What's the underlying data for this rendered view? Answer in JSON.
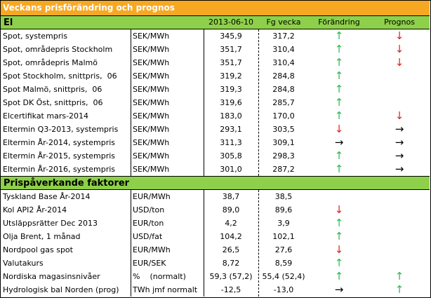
{
  "title": "Veckans prisförändring och prognos",
  "columns": [
    "2013-06-10",
    "Fg vecka",
    "Förändring",
    "Prognos"
  ],
  "sections": [
    {
      "title": "El",
      "rows": [
        {
          "label": "Spot, systempris",
          "unit": "SEK/MWh",
          "value": "345,9",
          "previous": "317,2",
          "change": {
            "symbol": "↑",
            "color": "#2db84d"
          },
          "forecast": {
            "symbol": "↓",
            "color": "#e02020"
          }
        },
        {
          "label": "Spot, områdepris Stockholm",
          "unit": "SEK/MWh",
          "value": "351,7",
          "previous": "310,4",
          "change": {
            "symbol": "↑",
            "color": "#2db84d"
          },
          "forecast": {
            "symbol": "↓",
            "color": "#e02020"
          }
        },
        {
          "label": "Spot, områdepris Malmö",
          "unit": "SEK/MWh",
          "value": "351,7",
          "previous": "310,4",
          "change": {
            "symbol": "↑",
            "color": "#2db84d"
          },
          "forecast": {
            "symbol": "↓",
            "color": "#e02020"
          }
        },
        {
          "label": "Spot Stockholm, snittpris,  06",
          "unit": "SEK/MWh",
          "value": "319,2",
          "previous": "284,8",
          "change": {
            "symbol": "↑",
            "color": "#2db84d"
          },
          "forecast": null
        },
        {
          "label": "Spot Malmö, snittpris,  06",
          "unit": "SEK/MWh",
          "value": "319,3",
          "previous": "284,8",
          "change": {
            "symbol": "↑",
            "color": "#2db84d"
          },
          "forecast": null
        },
        {
          "label": "Spot DK Öst, snittpris,  06",
          "unit": "SEK/MWh",
          "value": "319,6",
          "previous": "285,7",
          "change": {
            "symbol": "↑",
            "color": "#2db84d"
          },
          "forecast": null
        },
        {
          "label": "Elcertifikat mars-2014",
          "unit": "SEK/MWh",
          "value": "183,0",
          "previous": "170,0",
          "change": {
            "symbol": "↑",
            "color": "#2db84d"
          },
          "forecast": {
            "symbol": "↓",
            "color": "#e02020"
          }
        },
        {
          "label": "Eltermin Q3-2013, systempris",
          "unit": "SEK/MWh",
          "value": "293,1",
          "previous": "303,5",
          "change": {
            "symbol": "↓",
            "color": "#e02020"
          },
          "forecast": {
            "symbol": "→",
            "color": "#000000"
          }
        },
        {
          "label": "Eltermin År-2014, systempris",
          "unit": "SEK/MWh",
          "value": "311,3",
          "previous": "309,1",
          "change": {
            "symbol": "→",
            "color": "#000000"
          },
          "forecast": {
            "symbol": "→",
            "color": "#000000"
          }
        },
        {
          "label": "Eltermin År-2015, systempris",
          "unit": "SEK/MWh",
          "value": "305,8",
          "previous": "298,3",
          "change": {
            "symbol": "↑",
            "color": "#2db84d"
          },
          "forecast": {
            "symbol": "→",
            "color": "#000000"
          }
        },
        {
          "label": "Eltermin År-2016, systempris",
          "unit": "SEK/MWh",
          "value": "301,0",
          "previous": "287,2",
          "change": {
            "symbol": "↑",
            "color": "#2db84d"
          },
          "forecast": {
            "symbol": "→",
            "color": "#000000"
          }
        }
      ]
    },
    {
      "title": "Prispåverkande faktorer",
      "rows": [
        {
          "label": "Tyskland Base År-2014",
          "unit": "EUR/MWh",
          "value": "38,7",
          "previous": "38,5",
          "change": null,
          "forecast": null
        },
        {
          "label": "Kol API2 År-2014",
          "unit": "USD/ton",
          "value": "89,0",
          "previous": "89,6",
          "change": {
            "symbol": "↓",
            "color": "#e02020"
          },
          "forecast": null
        },
        {
          "label": "Utsläppsrätter Dec 2013",
          "unit": "EUR/ton",
          "value": "4,2",
          "previous": "3,9",
          "change": {
            "symbol": "↑",
            "color": "#2db84d"
          },
          "forecast": null
        },
        {
          "label": "Olja Brent, 1 månad",
          "unit": "USD/fat",
          "value": "104,2",
          "previous": "102,1",
          "change": {
            "symbol": "↑",
            "color": "#2db84d"
          },
          "forecast": null
        },
        {
          "label": "Nordpool gas spot",
          "unit": "EUR/MWh",
          "value": "26,5",
          "previous": "27,6",
          "change": {
            "symbol": "↓",
            "color": "#e02020"
          },
          "forecast": null
        },
        {
          "label": "Valutakurs",
          "unit": "EUR/SEK",
          "value": "8,72",
          "previous": "8,59",
          "change": {
            "symbol": "↑",
            "color": "#2db84d"
          },
          "forecast": null
        },
        {
          "label": "Nordiska magasinsnivåer",
          "unit": "%    (normalt)",
          "value": "59,3 (57,2)",
          "previous": "55,4 (52,4)",
          "change": {
            "symbol": "↑",
            "color": "#2db84d"
          },
          "forecast": {
            "symbol": "↑",
            "color": "#2db84d"
          }
        },
        {
          "label": "Hydrologisk bal Norden (prog)",
          "unit": "TWh jmf normalt",
          "value": "-12,5",
          "previous": "-13,0",
          "change": {
            "symbol": "→",
            "color": "#000000"
          },
          "forecast": {
            "symbol": "↑",
            "color": "#2db84d"
          }
        }
      ]
    }
  ]
}
